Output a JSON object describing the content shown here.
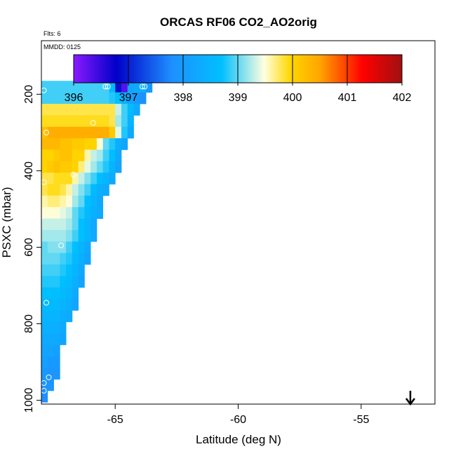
{
  "chart_data": {
    "type": "heatmap",
    "title": "ORCAS RF06 CO2_AO2orig",
    "annotations": {
      "flights": "Flts: 6",
      "date": "MMDD: 0125"
    },
    "xlabel": "Latitude (deg N)",
    "ylabel": "PSXC (mbar)",
    "xlim": [
      -68,
      -52
    ],
    "ylim": [
      1010,
      60
    ],
    "y_reversed": true,
    "x_ticks": [
      -65,
      -60,
      -55
    ],
    "x_tick_labels": [
      "-65",
      "-60",
      "-55"
    ],
    "y_ticks": [
      200,
      400,
      600,
      800,
      1000
    ],
    "y_tick_labels": [
      "200",
      "400",
      "600",
      "800",
      "1000"
    ],
    "arrow_marker": {
      "x": -53,
      "direction": "down"
    },
    "colorbar": {
      "min": 396,
      "max": 402,
      "ticks": [
        396,
        397,
        398,
        399,
        400,
        401,
        402
      ],
      "tick_labels": [
        "396",
        "397",
        "398",
        "399",
        "400",
        "401",
        "402"
      ],
      "color_stops": [
        "#8b1aff",
        "#0000c8",
        "#1e90ff",
        "#00bfff",
        "#ffffe0",
        "#ffd700",
        "#ffa500",
        "#ff0000",
        "#a01010"
      ]
    },
    "cell_size": {
      "lat": 0.25,
      "pres": 30
    },
    "rows": [
      {
        "p": 180,
        "lat0": -68.0,
        "vals": [
          398.9,
          398.9,
          398.9,
          398.9,
          398.9,
          398.9,
          398.9,
          398.9,
          398.9,
          398.9,
          398.9,
          398.6,
          396.9,
          396.3,
          398.2,
          398.3,
          398.4,
          398.0
        ]
      },
      {
        "p": 210,
        "lat0": -68.0,
        "vals": [
          398.9,
          398.9,
          398.9,
          398.9,
          398.9,
          398.9,
          398.9,
          398.9,
          398.9,
          398.9,
          398.9,
          398.8,
          398.7,
          398.4,
          398.2,
          398.0,
          397.8
        ]
      },
      {
        "p": 240,
        "lat0": -68.0,
        "vals": [
          399.8,
          399.8,
          399.8,
          399.8,
          399.8,
          399.8,
          399.8,
          399.8,
          399.8,
          399.8,
          399.8,
          399.8,
          399.3,
          398.9,
          398.6,
          398.3
        ]
      },
      {
        "p": 270,
        "lat0": -68.0,
        "vals": [
          399.9,
          399.9,
          399.9,
          399.9,
          399.9,
          399.9,
          399.9,
          399.9,
          399.9,
          399.9,
          399.9,
          399.8,
          399.2,
          398.9,
          398.5
        ]
      },
      {
        "p": 300,
        "lat0": -68.0,
        "vals": [
          400.2,
          400.4,
          400.4,
          400.4,
          400.4,
          400.4,
          400.4,
          400.4,
          400.4,
          400.4,
          400.4,
          400.1,
          399.4,
          398.8,
          398.3
        ]
      },
      {
        "p": 330,
        "lat0": -68.0,
        "vals": [
          400.3,
          400.3,
          400.3,
          400.2,
          400.2,
          400.1,
          400.1,
          400.0,
          400.0,
          399.5,
          399.0,
          398.8,
          398.4,
          398.2
        ]
      },
      {
        "p": 360,
        "lat0": -68.0,
        "vals": [
          400.0,
          400.0,
          400.1,
          400.2,
          400.2,
          400.0,
          400.0,
          399.6,
          399.3,
          399.2,
          398.9,
          398.7,
          398.3
        ]
      },
      {
        "p": 390,
        "lat0": -68.0,
        "vals": [
          400.0,
          400.1,
          400.2,
          400.1,
          400.1,
          400.0,
          399.7,
          399.4,
          399.2,
          399.0,
          398.8,
          398.5,
          398.2
        ]
      },
      {
        "p": 420,
        "lat0": -68.0,
        "vals": [
          399.8,
          399.8,
          399.9,
          399.9,
          399.9,
          399.6,
          399.3,
          399.1,
          398.9,
          398.7,
          398.5,
          398.3
        ]
      },
      {
        "p": 450,
        "lat0": -68.0,
        "vals": [
          399.8,
          399.9,
          399.9,
          399.8,
          399.6,
          399.3,
          399.1,
          398.9,
          398.6,
          398.4,
          398.3
        ]
      },
      {
        "p": 480,
        "lat0": -68.0,
        "vals": [
          399.6,
          399.7,
          399.7,
          399.6,
          399.5,
          399.2,
          399.0,
          398.7,
          398.5,
          398.3
        ]
      },
      {
        "p": 510,
        "lat0": -68.0,
        "vals": [
          399.5,
          399.5,
          399.5,
          399.4,
          399.3,
          399.0,
          398.8,
          398.6,
          398.4,
          398.3
        ]
      },
      {
        "p": 540,
        "lat0": -68.0,
        "vals": [
          399.3,
          399.3,
          399.3,
          399.3,
          399.2,
          399.0,
          398.7,
          398.5,
          398.3
        ]
      },
      {
        "p": 570,
        "lat0": -68.0,
        "vals": [
          399.2,
          399.2,
          399.2,
          399.2,
          399.1,
          398.9,
          398.7,
          398.5,
          398.3
        ]
      },
      {
        "p": 600,
        "lat0": -68.0,
        "vals": [
          399.0,
          399.1,
          399.1,
          399.1,
          398.9,
          398.7,
          398.5,
          398.3
        ]
      },
      {
        "p": 630,
        "lat0": -68.0,
        "vals": [
          399.0,
          399.0,
          399.0,
          398.9,
          398.8,
          398.6,
          398.4,
          398.2
        ]
      },
      {
        "p": 660,
        "lat0": -68.0,
        "vals": [
          398.9,
          398.9,
          398.9,
          398.8,
          398.7,
          398.5,
          398.3
        ]
      },
      {
        "p": 690,
        "lat0": -68.0,
        "vals": [
          398.8,
          398.8,
          398.8,
          398.7,
          398.6,
          398.4,
          398.2
        ]
      },
      {
        "p": 720,
        "lat0": -68.0,
        "vals": [
          398.7,
          398.7,
          398.7,
          398.6,
          398.5,
          398.3
        ]
      },
      {
        "p": 750,
        "lat0": -68.0,
        "vals": [
          398.6,
          398.6,
          398.6,
          398.5,
          398.4,
          398.2
        ]
      },
      {
        "p": 780,
        "lat0": -68.0,
        "vals": [
          398.5,
          398.5,
          398.5,
          398.4,
          398.3
        ]
      },
      {
        "p": 810,
        "lat0": -68.0,
        "vals": [
          398.4,
          398.4,
          398.4,
          398.3
        ]
      },
      {
        "p": 840,
        "lat0": -68.0,
        "vals": [
          398.3,
          398.3,
          398.3,
          398.2
        ]
      },
      {
        "p": 870,
        "lat0": -68.0,
        "vals": [
          398.2,
          398.2,
          398.1
        ]
      },
      {
        "p": 900,
        "lat0": -68.0,
        "vals": [
          398.1,
          398.0,
          398.0
        ]
      },
      {
        "p": 930,
        "lat0": -68.0,
        "vals": [
          398.0,
          397.9,
          397.9
        ]
      },
      {
        "p": 960,
        "lat0": -68.0,
        "vals": [
          397.9,
          397.9
        ]
      },
      {
        "p": 990,
        "lat0": -68.0,
        "vals": [
          397.8
        ]
      }
    ],
    "points": [
      {
        "lat": -67.9,
        "p": 190
      },
      {
        "lat": -65.4,
        "p": 180
      },
      {
        "lat": -65.3,
        "p": 180
      },
      {
        "lat": -63.9,
        "p": 180
      },
      {
        "lat": -63.8,
        "p": 180
      },
      {
        "lat": -65.9,
        "p": 275
      },
      {
        "lat": -67.8,
        "p": 300
      },
      {
        "lat": -66.7,
        "p": 410
      },
      {
        "lat": -67.9,
        "p": 430
      },
      {
        "lat": -68.0,
        "p": 520
      },
      {
        "lat": -67.2,
        "p": 595
      },
      {
        "lat": -67.8,
        "p": 745
      },
      {
        "lat": -67.7,
        "p": 940
      },
      {
        "lat": -67.9,
        "p": 955
      },
      {
        "lat": -67.9,
        "p": 975
      }
    ]
  }
}
